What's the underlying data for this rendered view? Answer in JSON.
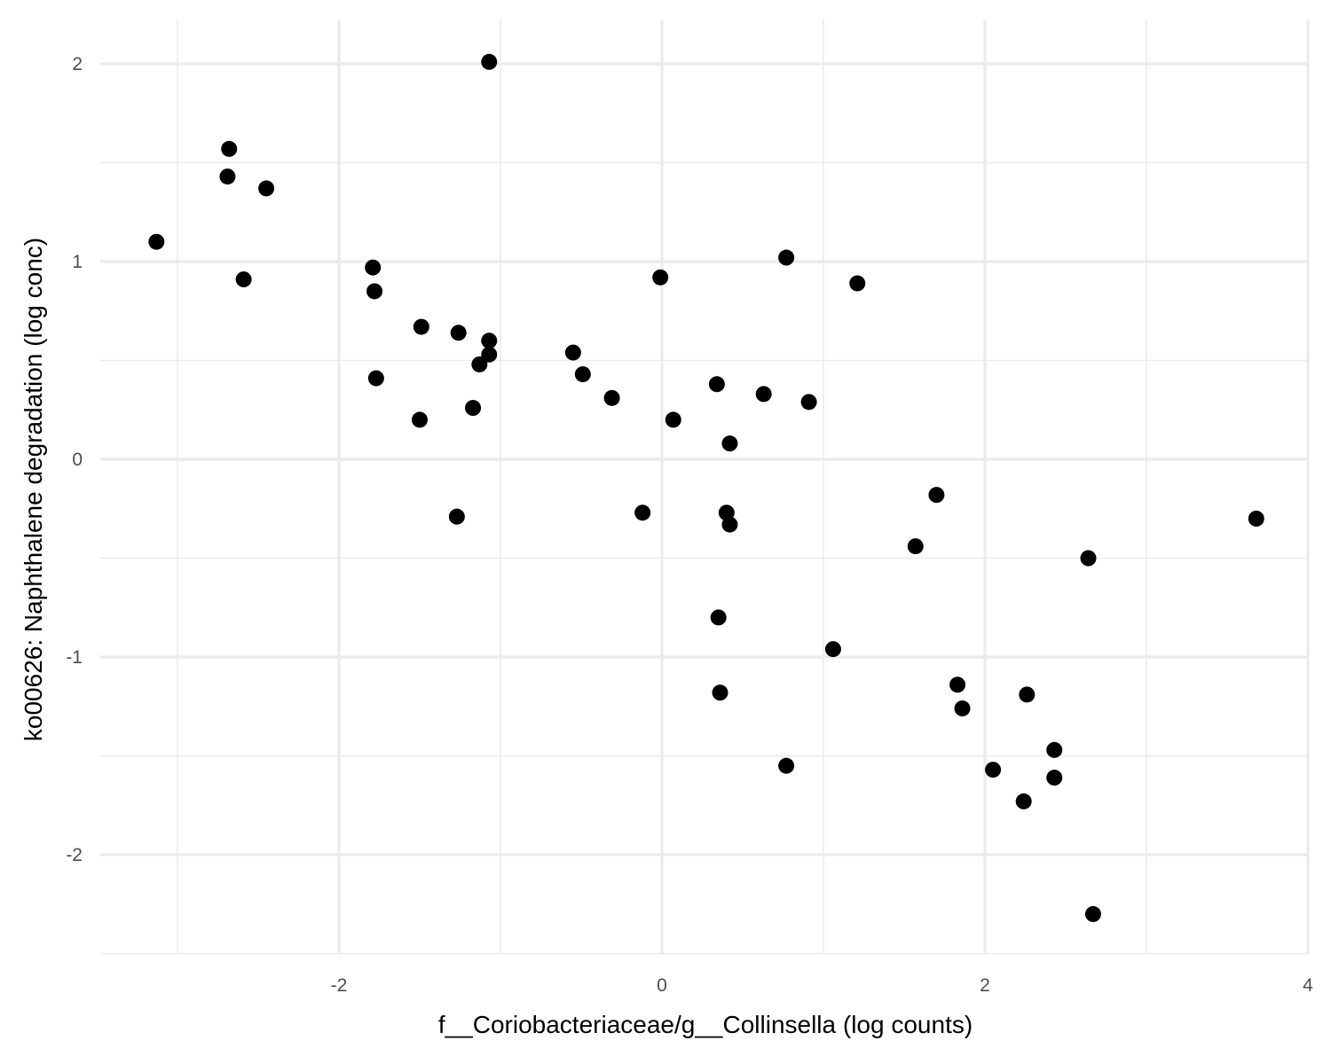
{
  "chart_data": {
    "type": "scatter",
    "title": "",
    "xlabel": "f__Coriobacteriaceae/g__Collinsella (log counts)",
    "ylabel": "ko00626: Naphthalene degradation (log conc)",
    "xlim": [
      -3.5,
      4.0
    ],
    "ylim": [
      -2.5,
      2.2
    ],
    "x_ticks": [
      -2,
      0,
      2,
      4
    ],
    "x_tick_labels": [
      "-2",
      "0",
      "2",
      "4"
    ],
    "y_ticks": [
      -2,
      -1,
      0,
      1,
      2
    ],
    "y_tick_labels": [
      "-2",
      "-1",
      "0",
      "1",
      "2"
    ],
    "grid": true,
    "point_color": "#000000",
    "points": [
      {
        "x": -3.13,
        "y": 1.1
      },
      {
        "x": -2.68,
        "y": 1.57
      },
      {
        "x": -2.69,
        "y": 1.43
      },
      {
        "x": -2.45,
        "y": 1.37
      },
      {
        "x": -2.59,
        "y": 0.91
      },
      {
        "x": -1.79,
        "y": 0.97
      },
      {
        "x": -1.78,
        "y": 0.85
      },
      {
        "x": -1.77,
        "y": 0.41
      },
      {
        "x": -1.49,
        "y": 0.67
      },
      {
        "x": -1.5,
        "y": 0.2
      },
      {
        "x": -1.26,
        "y": 0.64
      },
      {
        "x": -1.17,
        "y": 0.26
      },
      {
        "x": -1.13,
        "y": 0.48
      },
      {
        "x": -1.07,
        "y": 0.6
      },
      {
        "x": -1.07,
        "y": 0.53
      },
      {
        "x": -1.07,
        "y": 2.01
      },
      {
        "x": -1.27,
        "y": -0.29
      },
      {
        "x": -0.55,
        "y": 0.54
      },
      {
        "x": -0.49,
        "y": 0.43
      },
      {
        "x": -0.31,
        "y": 0.31
      },
      {
        "x": -0.12,
        "y": -0.27
      },
      {
        "x": -0.01,
        "y": 0.92
      },
      {
        "x": 0.07,
        "y": 0.2
      },
      {
        "x": 0.34,
        "y": 0.38
      },
      {
        "x": 0.42,
        "y": 0.08
      },
      {
        "x": 0.4,
        "y": -0.27
      },
      {
        "x": 0.42,
        "y": -0.33
      },
      {
        "x": 0.63,
        "y": 0.33
      },
      {
        "x": 0.35,
        "y": -0.8
      },
      {
        "x": 0.36,
        "y": -1.18
      },
      {
        "x": 0.77,
        "y": 1.02
      },
      {
        "x": 0.91,
        "y": 0.29
      },
      {
        "x": 0.77,
        "y": -1.55
      },
      {
        "x": 1.06,
        "y": -0.96
      },
      {
        "x": 1.21,
        "y": 0.89
      },
      {
        "x": 1.57,
        "y": -0.44
      },
      {
        "x": 1.7,
        "y": -0.18
      },
      {
        "x": 1.83,
        "y": -1.14
      },
      {
        "x": 1.86,
        "y": -1.26
      },
      {
        "x": 2.05,
        "y": -1.57
      },
      {
        "x": 2.24,
        "y": -1.73
      },
      {
        "x": 2.26,
        "y": -1.19
      },
      {
        "x": 2.43,
        "y": -1.47
      },
      {
        "x": 2.43,
        "y": -1.61
      },
      {
        "x": 2.64,
        "y": -0.5
      },
      {
        "x": 2.67,
        "y": -2.3
      },
      {
        "x": 3.68,
        "y": -0.3
      }
    ]
  }
}
